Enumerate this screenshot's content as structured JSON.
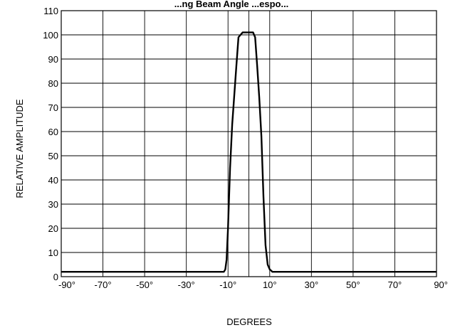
{
  "chart_data": {
    "type": "line",
    "title": "...ng Beam Angle ...espo...",
    "xlabel": "DEGREES",
    "ylabel": "RELATIVE AMPLITUDE",
    "xlim": [
      -90,
      90
    ],
    "ylim": [
      0,
      110
    ],
    "x_ticks": [
      -90,
      -70,
      -50,
      -30,
      -10,
      10,
      30,
      50,
      70,
      90
    ],
    "x_tick_labels": [
      "-90°",
      "-70°",
      "-50°",
      "-30°",
      "-10°",
      "10°",
      "30°",
      "50°",
      "70°",
      "90°"
    ],
    "x_gridlines": [
      -90,
      -70,
      -50,
      -30,
      -10,
      0,
      10,
      30,
      50,
      70,
      90
    ],
    "y_ticks": [
      0,
      10,
      20,
      30,
      40,
      50,
      60,
      70,
      80,
      90,
      100,
      110
    ],
    "y_tick_labels": [
      "0",
      "10",
      "20",
      "30",
      "40",
      "50",
      "60",
      "70",
      "80",
      "90",
      "100",
      "110"
    ],
    "grid": true,
    "legend": "none",
    "line_color": "#000000",
    "series": [
      {
        "x": [
          -90,
          -12,
          -11.3,
          -10.7,
          -10,
          -9,
          -8,
          -7,
          -6,
          -5,
          -4,
          -3,
          -2,
          -1,
          0,
          1,
          2,
          3,
          4,
          5,
          6,
          7,
          8,
          9,
          10,
          10.7,
          11.3,
          12,
          90
        ],
        "values": [
          2,
          2,
          3,
          7,
          20,
          45,
          63,
          75,
          87,
          99,
          100,
          101,
          101,
          101,
          101,
          101,
          101,
          99,
          87,
          74,
          58,
          33,
          13,
          5,
          3,
          2.5,
          2,
          2,
          2
        ]
      }
    ]
  }
}
